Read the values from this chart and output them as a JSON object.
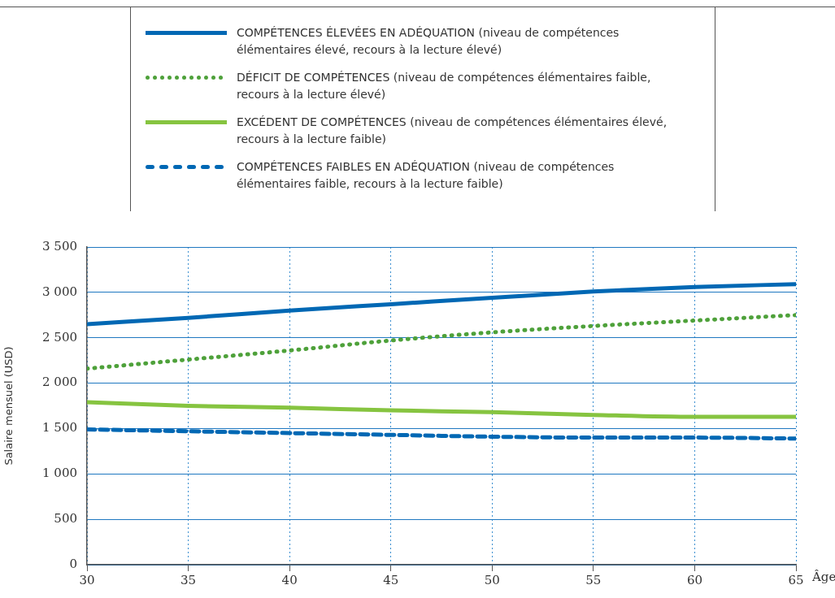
{
  "chart_data": {
    "type": "line",
    "xlabel": "Âge",
    "ylabel": "Salaire mensuel (USD)",
    "x": [
      30,
      35,
      40,
      45,
      50,
      55,
      60,
      65
    ],
    "series": [
      {
        "name": "COMPÉTENCES ÉLEVÉES EN ADÉQUATION (niveau de compétences élémentaires élevé, recours à la lecture élevé)",
        "color": "#0068b4",
        "line_style": "solid",
        "values": [
          2650,
          2720,
          2800,
          2870,
          2940,
          3010,
          3060,
          3090
        ]
      },
      {
        "name": "DÉFICIT DE COMPÉTENCES (niveau de compétences élémentaires faible, recours à la lecture élevé)",
        "color": "#4ea13a",
        "line_style": "dotted",
        "values": [
          2160,
          2260,
          2360,
          2470,
          2560,
          2630,
          2690,
          2750
        ]
      },
      {
        "name": "EXCÉDENT DE COMPÉTENCES (niveau de compétences élémentaires élevé, recours à la lecture faible)",
        "color": "#86c440",
        "line_style": "solid",
        "values": [
          1790,
          1750,
          1730,
          1700,
          1680,
          1650,
          1630,
          1630
        ]
      },
      {
        "name": "COMPÉTENCES FAIBLES EN ADÉQUATION (niveau de compétences élémentaires faible, recours à la lecture faible)",
        "color": "#0068b4",
        "line_style": "dashed",
        "values": [
          1490,
          1470,
          1450,
          1430,
          1410,
          1400,
          1400,
          1390
        ]
      }
    ],
    "xlim": [
      30,
      65
    ],
    "xticks": [
      30,
      35,
      40,
      45,
      50,
      55,
      60,
      65
    ],
    "ylim": [
      0,
      3500
    ],
    "yticks": [
      {
        "value": 0,
        "label": "0"
      },
      {
        "value": 500,
        "label": "500"
      },
      {
        "value": 1000,
        "label": "1 000"
      },
      {
        "value": 1500,
        "label": "1 500"
      },
      {
        "value": 2000,
        "label": "2 000"
      },
      {
        "value": 2500,
        "label": "2 500"
      },
      {
        "value": 3000,
        "label": "3 000"
      },
      {
        "value": 3500,
        "label": "3 500"
      }
    ],
    "grid": true,
    "legend": "top",
    "marker": "none"
  }
}
